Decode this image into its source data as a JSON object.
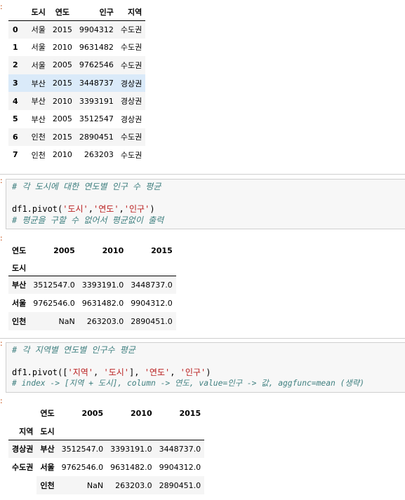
{
  "output1": {
    "columns": [
      "도시",
      "연도",
      "인구",
      "지역"
    ],
    "rows": [
      {
        "index": "0",
        "city": "서울",
        "year": "2015",
        "pop": "9904312",
        "region": "수도권"
      },
      {
        "index": "1",
        "city": "서울",
        "year": "2010",
        "pop": "9631482",
        "region": "수도권"
      },
      {
        "index": "2",
        "city": "서울",
        "year": "2005",
        "pop": "9762546",
        "region": "수도권"
      },
      {
        "index": "3",
        "city": "부산",
        "year": "2015",
        "pop": "3448737",
        "region": "경상권"
      },
      {
        "index": "4",
        "city": "부산",
        "year": "2010",
        "pop": "3393191",
        "region": "경상권"
      },
      {
        "index": "5",
        "city": "부산",
        "year": "2005",
        "pop": "3512547",
        "region": "경상권"
      },
      {
        "index": "6",
        "city": "인천",
        "year": "2015",
        "pop": "2890451",
        "region": "수도권"
      },
      {
        "index": "7",
        "city": "인천",
        "year": "2010",
        "pop": "263203",
        "region": "수도권"
      }
    ]
  },
  "cell1": {
    "comment1": "# 각 도시에 대한 연도별 인구 수 평균",
    "code_prefix": "df1.pivot(",
    "arg1": "'도시'",
    "sep1": ",",
    "arg2": "'연도'",
    "sep2": ",",
    "arg3": "'인구'",
    "code_suffix": ")",
    "comment2": "# 평균을 구할 수 없어서 평균없이 출력"
  },
  "output2": {
    "col_label": "연도",
    "index_label": "도시",
    "columns": [
      "2005",
      "2010",
      "2015"
    ],
    "rows": [
      {
        "index": "부산",
        "v": [
          "3512547.0",
          "3393191.0",
          "3448737.0"
        ]
      },
      {
        "index": "서울",
        "v": [
          "9762546.0",
          "9631482.0",
          "9904312.0"
        ]
      },
      {
        "index": "인천",
        "v": [
          "NaN",
          "263203.0",
          "2890451.0"
        ]
      }
    ]
  },
  "cell2": {
    "comment1": "# 각 지역별 연도별 인구수 평균",
    "code_prefix": "df1.pivot([",
    "arg1": "'지역'",
    "sep1": ", ",
    "arg2": "'도시'",
    "mid": "], ",
    "arg3": "'연도'",
    "sep3": ", ",
    "arg4": "'인구'",
    "code_suffix": ")",
    "comment2": "# index -> [지역 + 도시], column -> 연도, value=인구 -> 값, aggfunc=mean (생략)"
  },
  "output3": {
    "col_label": "연도",
    "index_label1": "지역",
    "index_label2": "도시",
    "columns": [
      "2005",
      "2010",
      "2015"
    ],
    "rows": [
      {
        "level0": "경상권",
        "level1": "부산",
        "v": [
          "3512547.0",
          "3393191.0",
          "3448737.0"
        ]
      },
      {
        "level0": "수도권",
        "level1": "서울",
        "v": [
          "9762546.0",
          "9631482.0",
          "9904312.0"
        ]
      },
      {
        "level0": "",
        "level1": "인천",
        "v": [
          "NaN",
          "263203.0",
          "2890451.0"
        ]
      }
    ]
  }
}
